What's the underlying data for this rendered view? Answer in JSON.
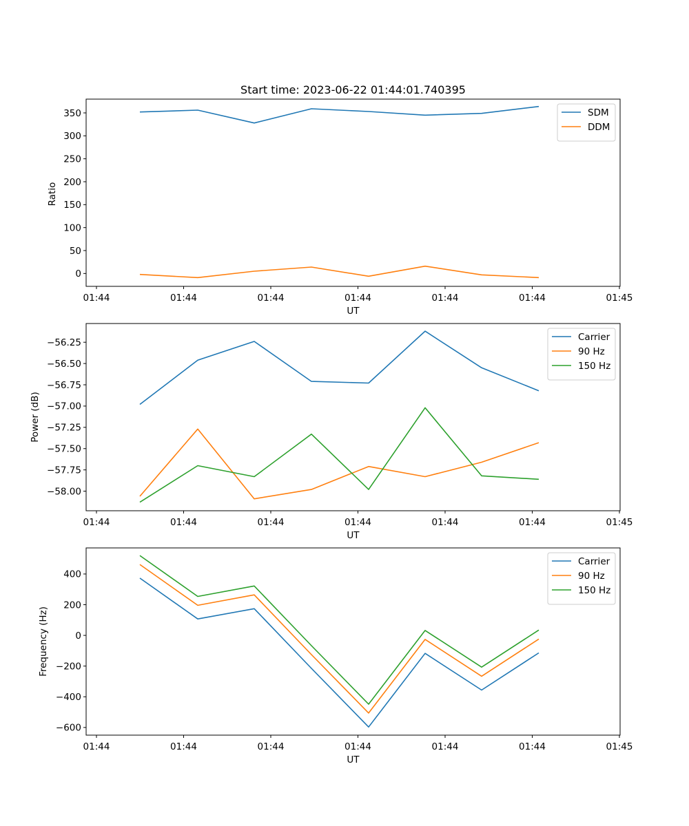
{
  "figure": {
    "title": "Start time: 2023-06-22 01:44:01.740395"
  },
  "chart_data": [
    {
      "type": "line",
      "xlabel": "UT",
      "ylabel": "Ratio",
      "xtick_labels": [
        "01:44",
        "01:44",
        "01:44",
        "01:44",
        "01:44",
        "01:44",
        "01:45"
      ],
      "yticks": [
        0,
        50,
        100,
        150,
        200,
        250,
        300,
        350
      ],
      "ytick_labels": [
        "0",
        "50",
        "100",
        "150",
        "200",
        "250",
        "300",
        "350"
      ],
      "ylim": [
        -28,
        380
      ],
      "legend_position": "top-right",
      "series": [
        {
          "name": "SDM",
          "color": "#1f77b4",
          "values": [
            352,
            356,
            328,
            359,
            353,
            345,
            349,
            364
          ]
        },
        {
          "name": "DDM",
          "color": "#ff7f0e",
          "values": [
            -2,
            -9,
            5,
            14,
            -6,
            16,
            -3,
            -9
          ]
        }
      ]
    },
    {
      "type": "line",
      "xlabel": "UT",
      "ylabel": "Power (dB)",
      "xtick_labels": [
        "01:44",
        "01:44",
        "01:44",
        "01:44",
        "01:44",
        "01:44",
        "01:45"
      ],
      "yticks": [
        -58.0,
        -57.75,
        -57.5,
        -57.25,
        -57.0,
        -56.75,
        -56.5,
        -56.25
      ],
      "ytick_labels": [
        "−58.00",
        "−57.75",
        "−57.50",
        "−57.25",
        "−57.00",
        "−56.75",
        "−56.50",
        "−56.25"
      ],
      "ylim": [
        -58.23,
        -56.03
      ],
      "legend_position": "top-right",
      "series": [
        {
          "name": "Carrier",
          "color": "#1f77b4",
          "values": [
            -56.98,
            -56.46,
            -56.24,
            -56.71,
            -56.73,
            -56.12,
            -56.55,
            -56.82
          ]
        },
        {
          "name": "90 Hz",
          "color": "#ff7f0e",
          "values": [
            -58.06,
            -57.27,
            -58.09,
            -57.98,
            -57.71,
            -57.83,
            -57.66,
            -57.43
          ]
        },
        {
          "name": "150 Hz",
          "color": "#2ca02c",
          "values": [
            -58.13,
            -57.7,
            -57.83,
            -57.33,
            -57.98,
            -57.02,
            -57.82,
            -57.86
          ]
        }
      ]
    },
    {
      "type": "line",
      "xlabel": "UT",
      "ylabel": "Frequency (Hz)",
      "xtick_labels": [
        "01:44",
        "01:44",
        "01:44",
        "01:44",
        "01:44",
        "01:44",
        "01:45"
      ],
      "yticks": [
        -600,
        -400,
        -200,
        0,
        200,
        400
      ],
      "ytick_labels": [
        "−600",
        "−400",
        "−200",
        "0",
        "200",
        "400"
      ],
      "ylim": [
        -650,
        570
      ],
      "legend_position": "top-right",
      "series": [
        {
          "name": "Carrier",
          "color": "#1f77b4",
          "values": [
            373,
            107,
            174,
            -215,
            -597,
            -117,
            -356,
            -114
          ]
        },
        {
          "name": "90 Hz",
          "color": "#ff7f0e",
          "values": [
            462,
            196,
            264,
            -125,
            -506,
            -26,
            -266,
            -24
          ]
        },
        {
          "name": "150 Hz",
          "color": "#2ca02c",
          "values": [
            520,
            254,
            322,
            -67,
            -448,
            32,
            -207,
            35
          ]
        }
      ]
    }
  ]
}
